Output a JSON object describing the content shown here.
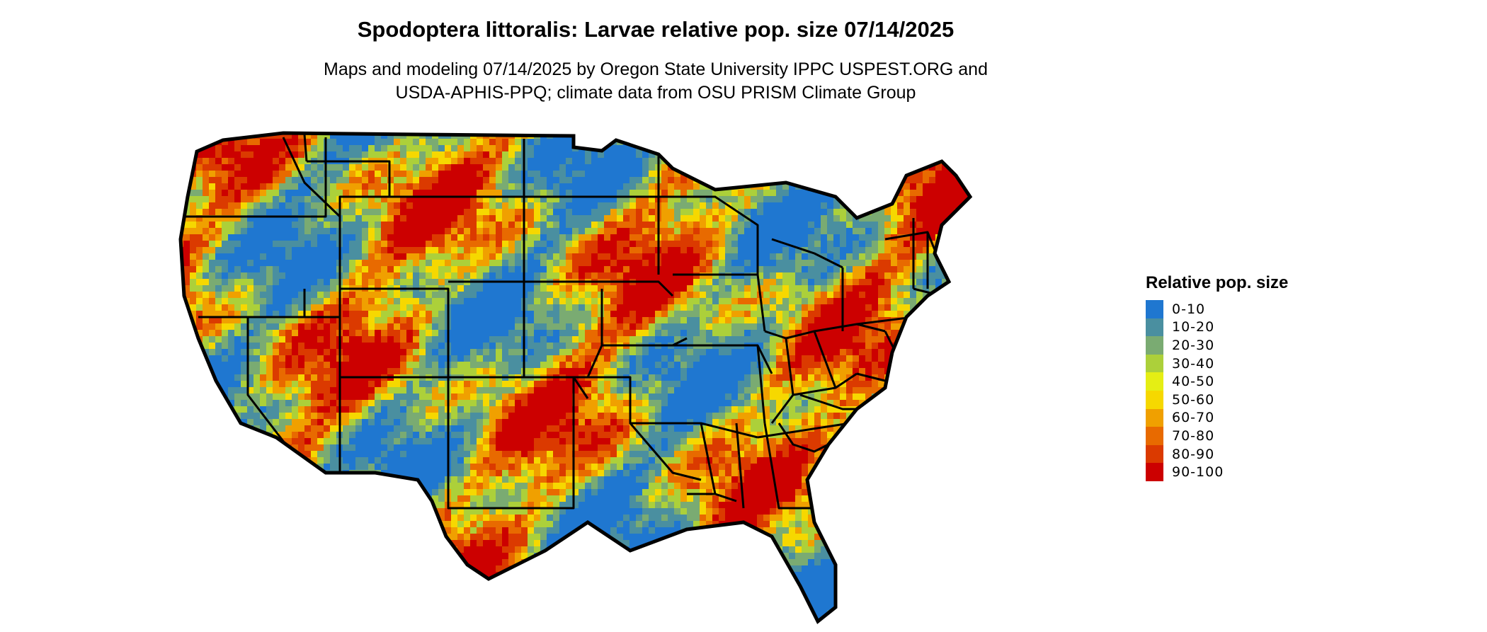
{
  "map": {
    "title": "Spodoptera littoralis: Larvae relative pop. size 07/14/2025",
    "subtitle_lines": [
      "Maps and modeling 07/14/2025 by Oregon State University IPPC USPEST.ORG and",
      "USDA-APHIS-PPQ; climate data from OSU PRISM Climate Group"
    ]
  },
  "legend": {
    "title": "Relative pop. size",
    "items": [
      {
        "label": "0-10",
        "color": "#1f77d0"
      },
      {
        "label": "10-20",
        "color": "#4a8fa0"
      },
      {
        "label": "20-30",
        "color": "#7aab72"
      },
      {
        "label": "30-40",
        "color": "#acd03a"
      },
      {
        "label": "40-50",
        "color": "#e5ee14"
      },
      {
        "label": "50-60",
        "color": "#f6d800"
      },
      {
        "label": "60-70",
        "color": "#f0a000"
      },
      {
        "label": "70-80",
        "color": "#e86a00"
      },
      {
        "label": "80-90",
        "color": "#db3a00"
      },
      {
        "label": "90-100",
        "color": "#cc0000"
      }
    ]
  }
}
